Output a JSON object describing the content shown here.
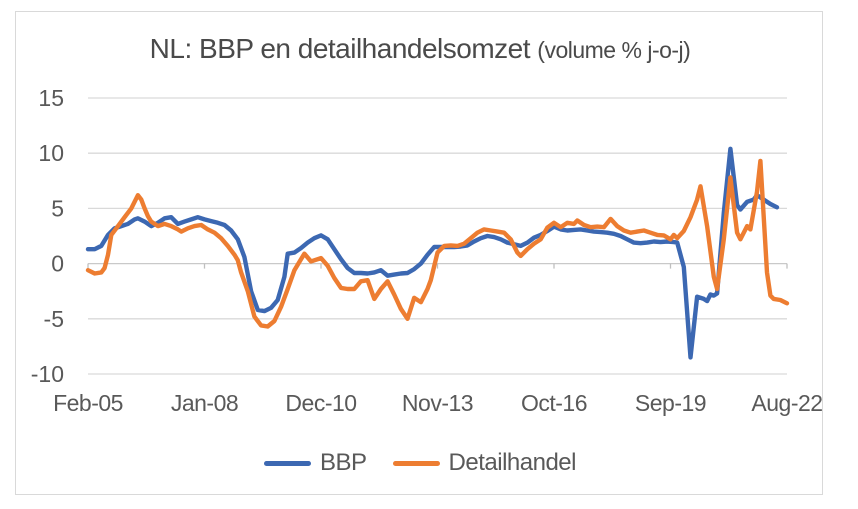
{
  "style": {
    "gridline_color": "#d9d9d9",
    "zero_axis_color": "#c9c9c9",
    "tick_color": "#bfbfbf",
    "axis_text_color": "#595959",
    "title_text_color": "#4a4a4a",
    "frame_border_color": "#d9d9d9",
    "background": "#ffffff"
  },
  "chart_data": {
    "type": "line",
    "title": "NL: BBP en detailhandelsomzet",
    "subtitle": "(volume % j-o-j)",
    "grid": "horizontal",
    "legend_position": "bottom",
    "x_axis": {
      "unit": "months since Feb-2005 (monthly categories)",
      "tick_positions": [
        0,
        35,
        70,
        105,
        140,
        175,
        210
      ],
      "tick_labels": [
        "Feb-05",
        "Jan-08",
        "Dec-10",
        "Nov-13",
        "Oct-16",
        "Sep-19",
        "Aug-22"
      ]
    },
    "y_axis": {
      "min": -10,
      "max": 15,
      "ticks": [
        15,
        10,
        5,
        0,
        -5,
        -10
      ]
    },
    "series": [
      {
        "name": "BBP",
        "color": "#3c68b2",
        "points": [
          [
            0,
            1.3
          ],
          [
            2,
            1.3
          ],
          [
            4,
            1.6
          ],
          [
            6,
            2.6
          ],
          [
            8,
            3.2
          ],
          [
            10,
            3.4
          ],
          [
            12,
            3.6
          ],
          [
            14,
            4.0
          ],
          [
            15,
            4.1
          ],
          [
            17,
            3.8
          ],
          [
            19,
            3.4
          ],
          [
            21,
            3.7
          ],
          [
            23,
            4.1
          ],
          [
            25,
            4.2
          ],
          [
            27,
            3.6
          ],
          [
            29,
            3.8
          ],
          [
            31,
            4.0
          ],
          [
            33,
            4.2
          ],
          [
            35,
            4.0
          ],
          [
            37,
            3.85
          ],
          [
            39,
            3.7
          ],
          [
            41,
            3.5
          ],
          [
            43,
            3.0
          ],
          [
            45,
            2.2
          ],
          [
            47,
            0.6
          ],
          [
            49,
            -2.5
          ],
          [
            51,
            -4.2
          ],
          [
            53,
            -4.3
          ],
          [
            55,
            -4.0
          ],
          [
            57,
            -3.3
          ],
          [
            59,
            -1.2
          ],
          [
            60,
            0.9
          ],
          [
            62,
            1.0
          ],
          [
            64,
            1.4
          ],
          [
            66,
            1.9
          ],
          [
            68,
            2.3
          ],
          [
            70,
            2.55
          ],
          [
            72,
            2.2
          ],
          [
            74,
            1.3
          ],
          [
            76,
            0.4
          ],
          [
            78,
            -0.4
          ],
          [
            80,
            -0.85
          ],
          [
            82,
            -0.85
          ],
          [
            84,
            -0.9
          ],
          [
            86,
            -0.8
          ],
          [
            88,
            -0.6
          ],
          [
            90,
            -1.1
          ],
          [
            92,
            -1.0
          ],
          [
            94,
            -0.9
          ],
          [
            96,
            -0.85
          ],
          [
            98,
            -0.5
          ],
          [
            100,
            0.0
          ],
          [
            102,
            0.8
          ],
          [
            104,
            1.5
          ],
          [
            106,
            1.5
          ],
          [
            108,
            1.5
          ],
          [
            110,
            1.5
          ],
          [
            112,
            1.55
          ],
          [
            114,
            1.65
          ],
          [
            116,
            2.0
          ],
          [
            118,
            2.3
          ],
          [
            120,
            2.5
          ],
          [
            122,
            2.4
          ],
          [
            124,
            2.2
          ],
          [
            126,
            1.9
          ],
          [
            128,
            1.75
          ],
          [
            130,
            1.6
          ],
          [
            132,
            1.9
          ],
          [
            134,
            2.35
          ],
          [
            136,
            2.6
          ],
          [
            138,
            2.95
          ],
          [
            140,
            3.35
          ],
          [
            142,
            3.1
          ],
          [
            144,
            3.0
          ],
          [
            146,
            3.05
          ],
          [
            148,
            3.1
          ],
          [
            150,
            3.0
          ],
          [
            152,
            2.9
          ],
          [
            154,
            2.85
          ],
          [
            156,
            2.8
          ],
          [
            158,
            2.7
          ],
          [
            160,
            2.5
          ],
          [
            162,
            2.2
          ],
          [
            164,
            1.9
          ],
          [
            166,
            1.85
          ],
          [
            168,
            1.9
          ],
          [
            170,
            2.0
          ],
          [
            172,
            1.95
          ],
          [
            174,
            2.0
          ],
          [
            176,
            1.95
          ],
          [
            177,
            1.9
          ],
          [
            179,
            -0.3
          ],
          [
            181,
            -8.5
          ],
          [
            183,
            -3.0
          ],
          [
            185,
            -3.2
          ],
          [
            186,
            -3.4
          ],
          [
            187,
            -2.8
          ],
          [
            188,
            -2.9
          ],
          [
            189,
            -2.7
          ],
          [
            191,
            4.6
          ],
          [
            193,
            10.4
          ],
          [
            195,
            5.3
          ],
          [
            196,
            4.9
          ],
          [
            198,
            5.6
          ],
          [
            200,
            5.8
          ],
          [
            201,
            6.2
          ],
          [
            203,
            5.8
          ],
          [
            205,
            5.4
          ],
          [
            207,
            5.1
          ]
        ]
      },
      {
        "name": "Detailhandel",
        "color": "#ed7d31",
        "points": [
          [
            0,
            -0.6
          ],
          [
            2,
            -0.9
          ],
          [
            4,
            -0.8
          ],
          [
            5,
            -0.4
          ],
          [
            6,
            0.8
          ],
          [
            7,
            2.6
          ],
          [
            9,
            3.4
          ],
          [
            11,
            4.2
          ],
          [
            13,
            5.0
          ],
          [
            15,
            6.2
          ],
          [
            16,
            5.8
          ],
          [
            17,
            5.0
          ],
          [
            18,
            4.3
          ],
          [
            19,
            3.8
          ],
          [
            21,
            3.4
          ],
          [
            23,
            3.6
          ],
          [
            25,
            3.4
          ],
          [
            27,
            3.1
          ],
          [
            28,
            2.9
          ],
          [
            30,
            3.2
          ],
          [
            32,
            3.4
          ],
          [
            34,
            3.5
          ],
          [
            36,
            3.1
          ],
          [
            38,
            2.8
          ],
          [
            40,
            2.3
          ],
          [
            42,
            1.6
          ],
          [
            44,
            0.8
          ],
          [
            45,
            0.3
          ],
          [
            46,
            -0.8
          ],
          [
            48,
            -2.5
          ],
          [
            50,
            -4.8
          ],
          [
            52,
            -5.6
          ],
          [
            54,
            -5.7
          ],
          [
            56,
            -5.2
          ],
          [
            58,
            -3.9
          ],
          [
            60,
            -2.3
          ],
          [
            62,
            -0.6
          ],
          [
            64,
            0.4
          ],
          [
            65,
            0.9
          ],
          [
            67,
            0.2
          ],
          [
            68,
            0.3
          ],
          [
            70,
            0.5
          ],
          [
            72,
            -0.2
          ],
          [
            74,
            -1.3
          ],
          [
            76,
            -2.2
          ],
          [
            78,
            -2.3
          ],
          [
            80,
            -2.3
          ],
          [
            82,
            -1.6
          ],
          [
            84,
            -1.5
          ],
          [
            86,
            -3.2
          ],
          [
            88,
            -2.3
          ],
          [
            90,
            -1.6
          ],
          [
            92,
            -2.8
          ],
          [
            94,
            -4.1
          ],
          [
            96,
            -5.0
          ],
          [
            98,
            -3.1
          ],
          [
            100,
            -3.5
          ],
          [
            102,
            -2.3
          ],
          [
            103,
            -1.5
          ],
          [
            105,
            1.0
          ],
          [
            107,
            1.6
          ],
          [
            109,
            1.65
          ],
          [
            111,
            1.6
          ],
          [
            113,
            1.8
          ],
          [
            115,
            2.3
          ],
          [
            117,
            2.8
          ],
          [
            119,
            3.1
          ],
          [
            121,
            3.0
          ],
          [
            123,
            2.9
          ],
          [
            125,
            2.8
          ],
          [
            127,
            2.2
          ],
          [
            129,
            1.0
          ],
          [
            130,
            0.7
          ],
          [
            132,
            1.3
          ],
          [
            134,
            1.8
          ],
          [
            136,
            2.2
          ],
          [
            138,
            3.25
          ],
          [
            140,
            3.7
          ],
          [
            142,
            3.3
          ],
          [
            144,
            3.7
          ],
          [
            146,
            3.6
          ],
          [
            147,
            3.9
          ],
          [
            149,
            3.5
          ],
          [
            151,
            3.3
          ],
          [
            153,
            3.35
          ],
          [
            155,
            3.3
          ],
          [
            157,
            4.05
          ],
          [
            159,
            3.4
          ],
          [
            161,
            3.0
          ],
          [
            163,
            2.8
          ],
          [
            165,
            2.9
          ],
          [
            167,
            3.0
          ],
          [
            169,
            2.8
          ],
          [
            171,
            2.6
          ],
          [
            173,
            2.55
          ],
          [
            175,
            2.2
          ],
          [
            176,
            2.6
          ],
          [
            177,
            2.3
          ],
          [
            179,
            2.95
          ],
          [
            181,
            4.2
          ],
          [
            183,
            5.8
          ],
          [
            184,
            7.0
          ],
          [
            186,
            3.4
          ],
          [
            188,
            -1.2
          ],
          [
            189,
            -2.3
          ],
          [
            191,
            2.2
          ],
          [
            193,
            7.8
          ],
          [
            195,
            2.8
          ],
          [
            196,
            2.2
          ],
          [
            198,
            3.4
          ],
          [
            199,
            3.1
          ],
          [
            201,
            6.5
          ],
          [
            202,
            9.3
          ],
          [
            204,
            -0.8
          ],
          [
            205,
            -2.9
          ],
          [
            206,
            -3.2
          ],
          [
            208,
            -3.3
          ],
          [
            210,
            -3.6
          ]
        ]
      }
    ]
  }
}
